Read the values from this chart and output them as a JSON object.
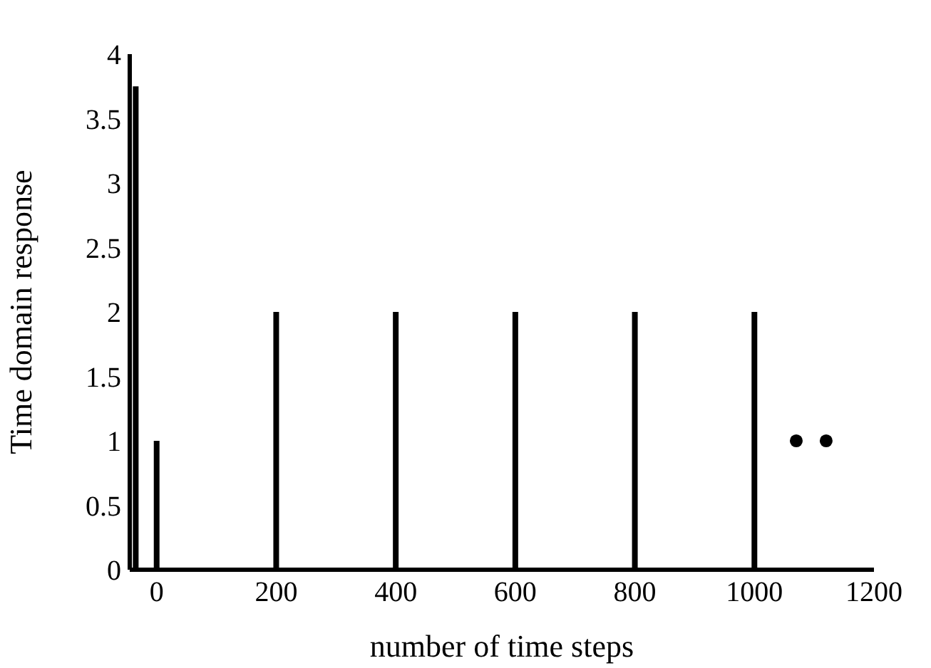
{
  "chart_data": {
    "type": "bar",
    "xlabel": "number of time steps",
    "ylabel": "Time domain response",
    "series": [
      {
        "color": "#000000",
        "x": [
          -35,
          0,
          200,
          400,
          600,
          800,
          1000
        ],
        "values": [
          3.75,
          1,
          2,
          2,
          2,
          2,
          2
        ]
      },
      {
        "type": "scatter",
        "color": "#000000",
        "x": [
          1070,
          1120
        ],
        "values": [
          1,
          1
        ]
      }
    ],
    "xlim": [
      -45,
      1200
    ],
    "xticks": [
      0,
      200,
      400,
      600,
      800,
      1000,
      1200
    ],
    "ylim": [
      0,
      4
    ],
    "yticks": [
      0,
      0.5,
      1,
      1.5,
      2,
      2.5,
      3,
      3.5,
      4
    ],
    "grid": false,
    "legend": false,
    "marker": "circle"
  }
}
